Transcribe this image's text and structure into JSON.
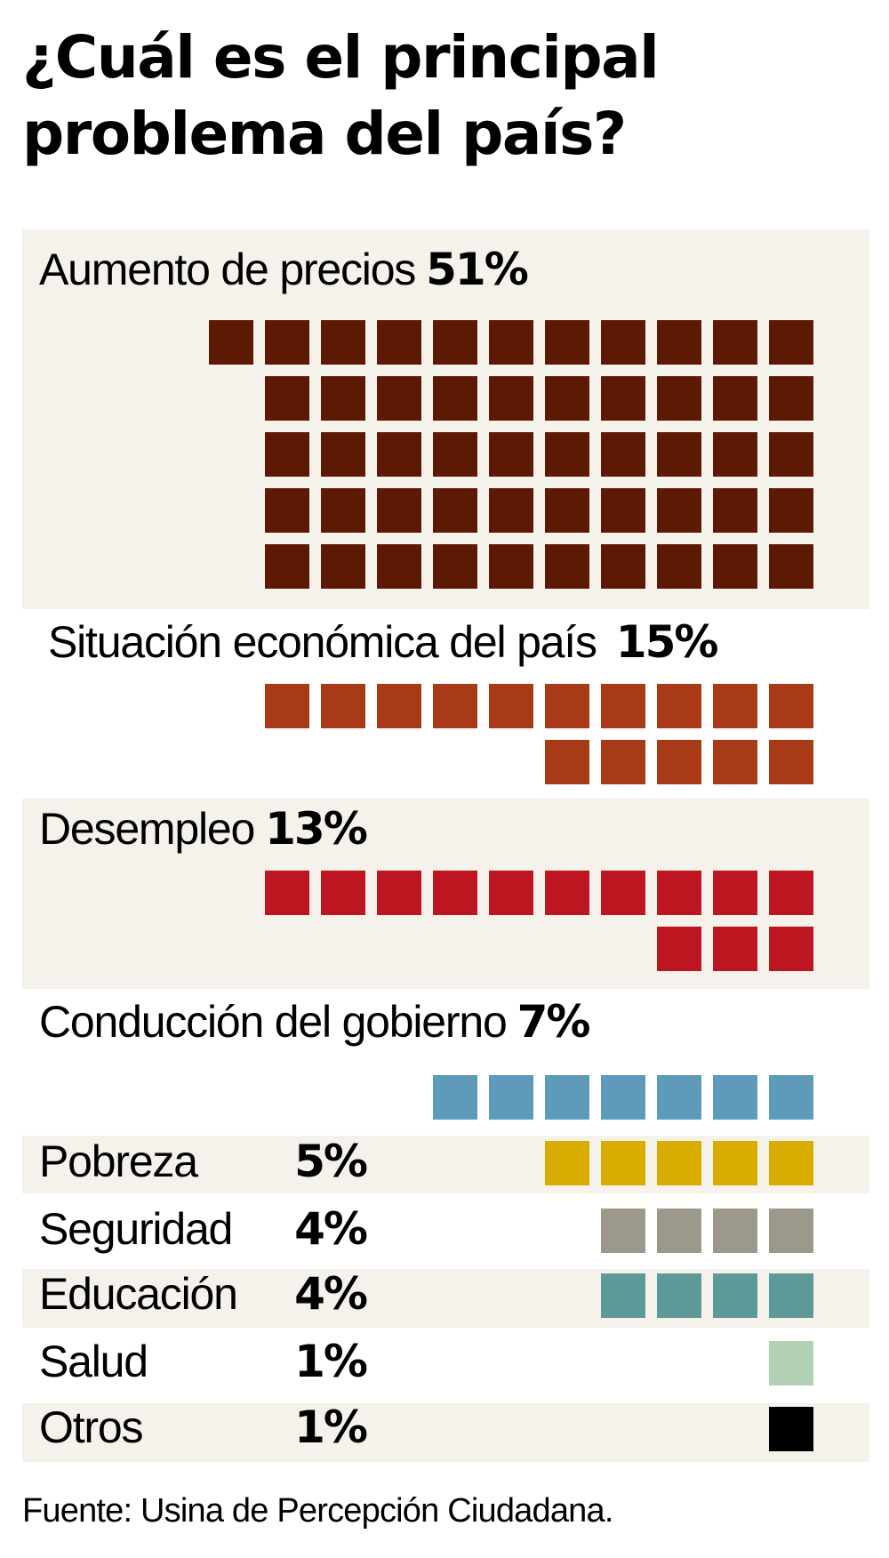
{
  "title_lines": [
    "¿Cuál es el principal",
    "problema del país?"
  ],
  "source": "Fuente: Usina de Percepción Ciudadana.",
  "chart_data": {
    "type": "waffle",
    "title": "¿Cuál es el principal problema del país?",
    "unit": "%",
    "categories": [
      {
        "label": "Aumento de precios",
        "pct_label": "51%",
        "value": 51,
        "color": "#5c1a04"
      },
      {
        "label": "Situación económica del país",
        "pct_label": "15%",
        "value": 15,
        "color": "#a83a17"
      },
      {
        "label": "Desempleo",
        "pct_label": "13%",
        "value": 13,
        "color": "#bd1620"
      },
      {
        "label": "Conducción del gobierno",
        "pct_label": "7%",
        "value": 7,
        "color": "#5e9bbb"
      },
      {
        "label": "Pobreza",
        "pct_label": "5%",
        "value": 5,
        "color": "#d9ad00"
      },
      {
        "label": "Seguridad",
        "pct_label": "4%",
        "value": 4,
        "color": "#9c998a"
      },
      {
        "label": "Educación",
        "pct_label": "4%",
        "value": 4,
        "color": "#5e9999"
      },
      {
        "label": "Salud",
        "pct_label": "1%",
        "value": 1,
        "color": "#b2d0b4"
      },
      {
        "label": "Otros",
        "pct_label": "1%",
        "value": 1,
        "color": "#000000"
      }
    ]
  }
}
